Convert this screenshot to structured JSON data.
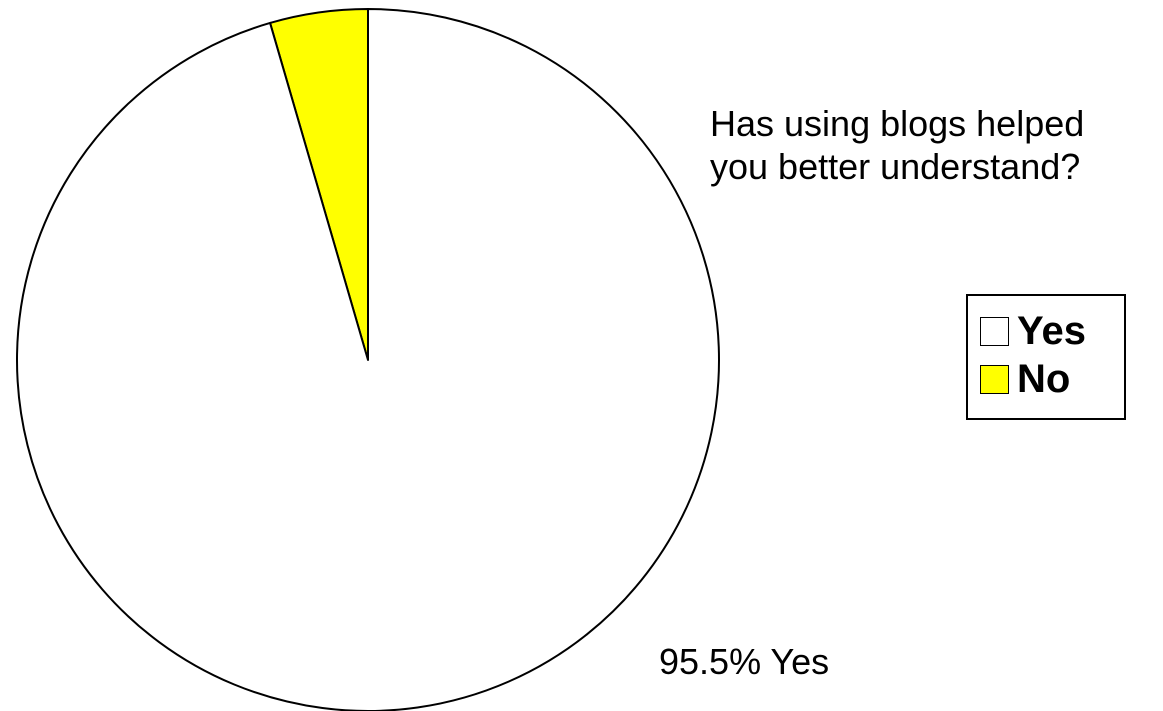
{
  "chart_data": {
    "type": "pie",
    "title": "Has using blogs helped you better understand?",
    "title_lines": [
      "Has using blogs helped",
      "you better understand?"
    ],
    "slices": [
      {
        "label": "Yes",
        "value": 95.5,
        "color": "#ffffff"
      },
      {
        "label": "No",
        "value": 4.5,
        "color": "#ffff00"
      }
    ],
    "data_label": "95.5% Yes",
    "legend": {
      "placement": "right",
      "entries": [
        "Yes",
        "No"
      ]
    }
  }
}
